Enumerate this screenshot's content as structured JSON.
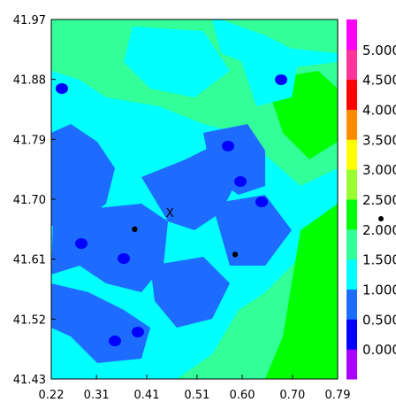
{
  "chart_data": {
    "type": "heatmap",
    "title": "",
    "xlabel": "",
    "ylabel": "",
    "xlim": [
      0.22,
      0.79
    ],
    "ylim": [
      41.43,
      41.97
    ],
    "x_ticks": [
      "0.22",
      "0.31",
      "0.41",
      "0.51",
      "0.60",
      "0.70",
      "0.79"
    ],
    "y_ticks": [
      "41.97",
      "41.88",
      "41.79",
      "41.70",
      "41.61",
      "41.52",
      "41.43"
    ],
    "colorbar": {
      "labels": [
        "0.000",
        "0.500",
        "1.000",
        "1.500",
        "2.000",
        "2.500",
        "3.000",
        "3.500",
        "4.000",
        "4.500",
        "5.000"
      ],
      "levels": [
        0.0,
        0.5,
        1.0,
        1.5,
        2.0,
        2.5,
        3.0,
        3.5,
        4.0,
        4.5,
        5.0,
        5.5
      ],
      "colors": [
        "#aa00ff",
        "#0000ff",
        "#1e6cff",
        "#00ffff",
        "#33ff99",
        "#00ff00",
        "#99ff33",
        "#ffff00",
        "#ff8c00",
        "#ff0000",
        "#ff3399",
        "#ff00ff"
      ]
    },
    "field_description": "Filled contours over the domain: predominantly values 1.0-1.5 (cyan) with large 0.5-1.0 (blue) patches in the west and centre, 1.5-2.0 (light green) and 2.0-2.5 (green) in the north and south-east.",
    "points": [
      {
        "x": 0.386,
        "y": 41.655,
        "marker": "dot"
      },
      {
        "x": 0.586,
        "y": 41.617,
        "marker": "dot"
      }
    ],
    "annotations": [
      {
        "text": "X",
        "x": 0.456,
        "y": 41.68
      }
    ]
  }
}
